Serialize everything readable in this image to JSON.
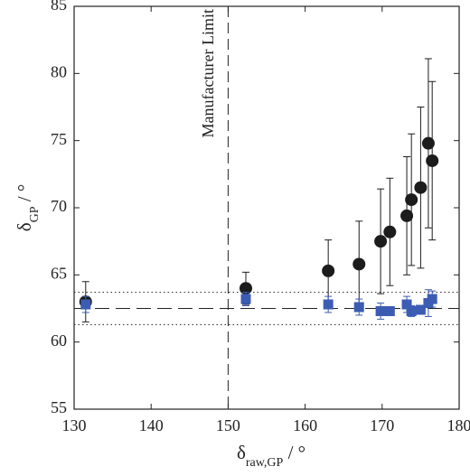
{
  "chart_data": {
    "type": "scatter",
    "xlabel": {
      "symbol": "δ",
      "subscript": "raw,GP",
      "unit": " / °"
    },
    "ylabel": {
      "symbol": "δ",
      "subscript": "GP",
      "unit": " / °"
    },
    "xlim": [
      130,
      180
    ],
    "xticks": [
      130,
      140,
      150,
      160,
      170,
      180
    ],
    "ylim": [
      55,
      85
    ],
    "yticks": [
      55,
      60,
      65,
      70,
      75,
      80,
      85
    ],
    "vline": {
      "value": 150,
      "label": "Manufacturer Limit"
    },
    "hlines": [
      {
        "value": 62.5,
        "style": "dashed"
      },
      {
        "value": 63.7,
        "style": "dotted"
      },
      {
        "value": 61.3,
        "style": "dotted"
      }
    ],
    "series": [
      {
        "marker": "circle",
        "color": "#1c1c1c",
        "x": [
          131.5,
          152.3,
          163,
          167,
          169.8,
          171,
          173.2,
          173.8,
          175,
          176,
          176.5
        ],
        "values": [
          63.0,
          64.0,
          65.3,
          65.8,
          67.5,
          68.2,
          69.4,
          70.6,
          71.5,
          74.8,
          73.5
        ],
        "errors": [
          1.5,
          1.2,
          2.3,
          3.2,
          3.9,
          4.0,
          4.4,
          4.9,
          6.0,
          6.3,
          5.9
        ]
      },
      {
        "marker": "square",
        "color": "#3c5cb4",
        "x": [
          131.5,
          152.3,
          163,
          167,
          169.8,
          171,
          173.2,
          173.8,
          175,
          176,
          176.5
        ],
        "values": [
          62.8,
          63.2,
          62.8,
          62.6,
          62.3,
          62.3,
          62.8,
          62.3,
          62.4,
          62.9,
          63.2
        ],
        "errors": [
          0.6,
          0.5,
          0.6,
          0.6,
          0.6,
          0.3,
          0.6,
          0.4,
          0.3,
          1.0,
          0.6
        ]
      }
    ]
  }
}
